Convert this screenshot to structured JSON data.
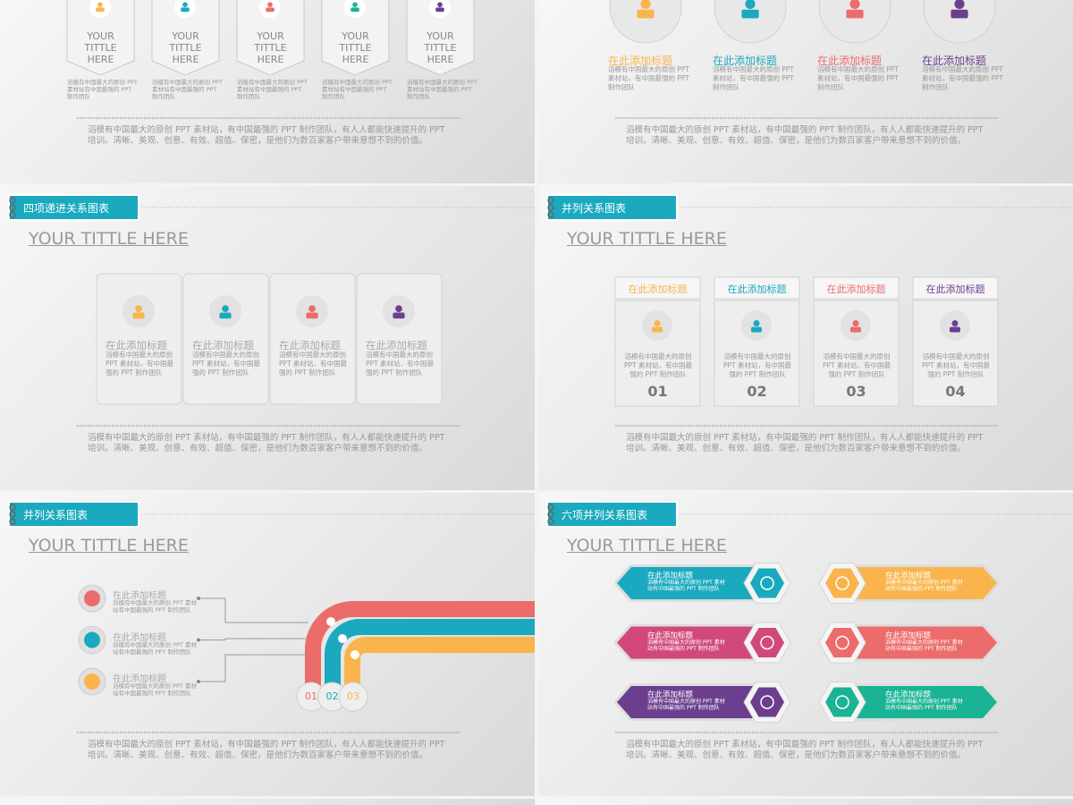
{
  "slides": [
    {
      "items": [
        {
          "label": "YOUR TITTLE HERE",
          "text": "滔模有中国最大的原创 PPT 素材站有中国最强的 PPT 制作团队"
        },
        {
          "label": "YOUR TITTLE HERE",
          "text": "滔模有中国最大的原创 PPT 素材站有中国最强的 PPT 制作团队"
        },
        {
          "label": "YOUR TITTLE HERE",
          "text": "滔模有中国最大的原创 PPT 素材站有中国最强的 PPT 制作团队"
        },
        {
          "label": "YOUR TITTLE HERE",
          "text": "滔模有中国最大的原创 PPT 素材站有中国最强的 PPT 制作团队"
        },
        {
          "label": "YOUR TITTLE HERE",
          "text": "滔模有中国最大的原创 PPT 素材站有中国最强的 PPT 制作团队"
        }
      ],
      "footer": "滔模有中国最大的原创 PPT 素材站，有中国最强的 PPT 制作团队，有人人都能快速提升的 PPT 培训。清晰、美观、创意、有效、超值、保密，是他们为数百家客户带来意想不到的价值。"
    },
    {
      "items": [
        {
          "title": "在此添加标题",
          "text": "滔模有中国最大的原创 PPT 素材站，有中国最强的 PPT 制作团队"
        },
        {
          "title": "在此添加标题",
          "text": "滔模有中国最大的原创 PPT 素材站，有中国最强的 PPT 制作团队"
        },
        {
          "title": "在此添加标题",
          "text": "滔模有中国最大的原创 PPT 素材站，有中国最强的 PPT 制作团队"
        },
        {
          "title": "在此添加标题",
          "text": "滔模有中国最大的原创 PPT 素材站，有中国最强的 PPT 制作团队"
        }
      ],
      "footer": "滔模有中国最大的原创 PPT 素材站，有中国最强的 PPT 制作团队，有人人都能快速提升的 PPT 培训。清晰、美观、创意、有效、超值、保密，是他们为数百家客户带来意想不到的价值。"
    },
    {
      "tag": "四项递进关系图表",
      "title": "YOUR TITTLE HERE",
      "items": [
        {
          "title": "在此添加标题",
          "text": "滔模有中国最大的原创 PPT 素材站，有中国最强的 PPT 制作团队"
        },
        {
          "title": "在此添加标题",
          "text": "滔模有中国最大的原创 PPT 素材站，有中国最强的 PPT 制作团队"
        },
        {
          "title": "在此添加标题",
          "text": "滔模有中国最大的原创 PPT 素材站，有中国最强的 PPT 制作团队"
        },
        {
          "title": "在此添加标题",
          "text": "滔模有中国最大的原创 PPT 素材站，有中国最强的 PPT 制作团队"
        }
      ],
      "footer": "滔模有中国最大的原创 PPT 素材站，有中国最强的 PPT 制作团队，有人人都能快速提升的 PPT 培训。清晰、美观、创意、有效、超值、保密，是他们为数百家客户带来意想不到的价值。"
    },
    {
      "tag": "并列关系图表",
      "title": "YOUR TITTLE HERE",
      "items": [
        {
          "title": "在此添加标题",
          "text": "滔模有中国最大的原创 PPT 素材站，有中国最强的 PPT 制作团队",
          "number": "01"
        },
        {
          "title": "在此添加标题",
          "text": "滔模有中国最大的原创 PPT 素材站，有中国最强的 PPT 制作团队",
          "number": "02"
        },
        {
          "title": "在此添加标题",
          "text": "滔模有中国最大的原创 PPT 素材站，有中国最强的 PPT 制作团队",
          "number": "03"
        },
        {
          "title": "在此添加标题",
          "text": "滔模有中国最大的原创 PPT 素材站，有中国最强的 PPT 制作团队",
          "number": "04"
        }
      ],
      "footer": "滔模有中国最大的原创 PPT 素材站，有中国最强的 PPT 制作团队，有人人都能快速提升的 PPT 培训。清晰、美观、创意、有效、超值、保密，是他们为数百家客户带来意想不到的价值。"
    },
    {
      "tag": "并列关系图表",
      "title": "YOUR TITTLE HERE",
      "items": [
        {
          "title": "在此添加标题",
          "text": "滔模有中国最大的原创 PPT 素材站有中国最强的 PPT 制作团队"
        },
        {
          "title": "在此添加标题",
          "text": "滔模有中国最大的原创 PPT 素材站有中国最强的 PPT 制作团队"
        },
        {
          "title": "在此添加标题",
          "text": "滔模有中国最大的原创 PPT 素材站有中国最强的 PPT 制作团队"
        }
      ],
      "numbers": [
        "01",
        "02",
        "03"
      ],
      "footer": "滔模有中国最大的原创 PPT 素材站，有中国最强的 PPT 制作团队，有人人都能快速提升的 PPT 培训。清晰、美观、创意、有效、超值、保密，是他们为数百家客户带来意想不到的价值。"
    },
    {
      "tag": "六项并列关系图表",
      "title": "YOUR TITTLE HERE",
      "items": [
        {
          "title": "在此添加标题",
          "text": "滔模有中国最大的原创 PPT 素材站有中国最强的 PPT 制作团队"
        },
        {
          "title": "在此添加标题",
          "text": "滔模有中国最大的原创 PPT 素材站有中国最强的 PPT 制作团队"
        },
        {
          "title": "在此添加标题",
          "text": "滔模有中国最大的原创 PPT 素材站有中国最强的 PPT 制作团队"
        },
        {
          "title": "在此添加标题",
          "text": "滔模有中国最大的原创 PPT 素材站有中国最强的 PPT 制作团队"
        },
        {
          "title": "在此添加标题",
          "text": "滔模有中国最大的原创 PPT 素材站有中国最强的 PPT 制作团队"
        },
        {
          "title": "在此添加标题",
          "text": "滔模有中国最大的原创 PPT 素材站有中国最强的 PPT 制作团队"
        }
      ],
      "footer": "滔模有中国最大的原创 PPT 素材站，有中国最强的 PPT 制作团队，有人人都能快速提升的 PPT 培训。清晰、美观、创意、有效、超值、保密，是他们为数百家客户带来意想不到的价值。"
    }
  ]
}
